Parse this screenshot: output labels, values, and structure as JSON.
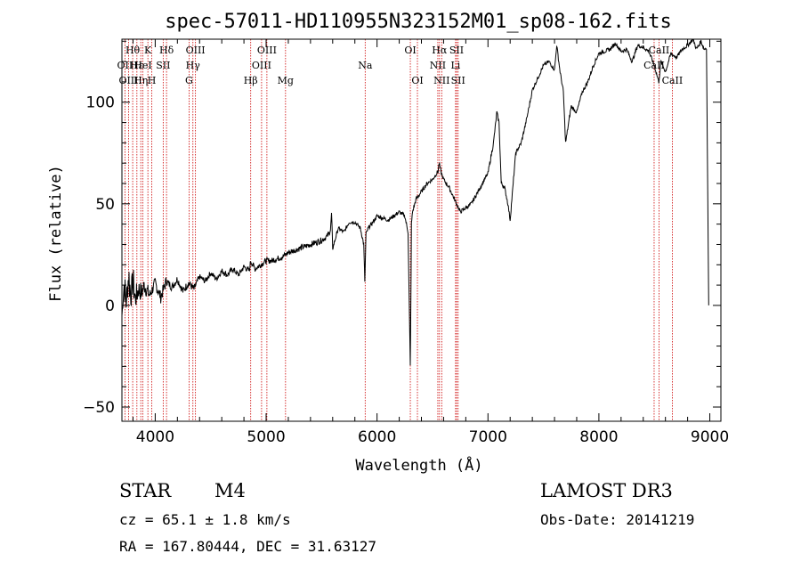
{
  "chart_data": {
    "type": "line",
    "title": "spec-57011-HD110955N323152M01_sp08-162.fits",
    "xlabel": "Wavelength (Å)",
    "ylabel": "Flux (relative)",
    "xlim": [
      3700,
      9100
    ],
    "ylim": [
      -57,
      131
    ],
    "x_ticks": [
      4000,
      5000,
      6000,
      7000,
      8000,
      9000
    ],
    "y_ticks": [
      -50,
      0,
      50,
      100
    ],
    "series": [
      {
        "name": "flux",
        "x": [
          3700,
          3720,
          3740,
          3760,
          3780,
          3800,
          3820,
          3850,
          3880,
          3900,
          3950,
          4000,
          4050,
          4100,
          4150,
          4200,
          4250,
          4300,
          4350,
          4400,
          4450,
          4500,
          4550,
          4600,
          4650,
          4700,
          4750,
          4800,
          4850,
          4860,
          4900,
          4950,
          5000,
          5050,
          5100,
          5150,
          5200,
          5250,
          5300,
          5350,
          5400,
          5450,
          5500,
          5550,
          5580,
          5590,
          5600,
          5650,
          5700,
          5750,
          5800,
          5850,
          5880,
          5890,
          5900,
          5920,
          5950,
          6000,
          6050,
          6100,
          6150,
          6200,
          6250,
          6280,
          6300,
          6310,
          6320,
          6350,
          6400,
          6450,
          6500,
          6550,
          6560,
          6580,
          6600,
          6650,
          6700,
          6750,
          6800,
          6850,
          6900,
          6950,
          7000,
          7050,
          7080,
          7100,
          7120,
          7150,
          7180,
          7200,
          7250,
          7300,
          7350,
          7400,
          7450,
          7500,
          7550,
          7600,
          7620,
          7650,
          7680,
          7700,
          7750,
          7800,
          7850,
          7900,
          7950,
          8000,
          8050,
          8100,
          8150,
          8200,
          8250,
          8300,
          8350,
          8400,
          8450,
          8500,
          8540,
          8560,
          8600,
          8650,
          8700,
          8750,
          8800,
          8850,
          8880,
          8900,
          8920,
          8950,
          8970,
          8990
        ],
        "y": [
          -5,
          10,
          2,
          15,
          5,
          12,
          3,
          8,
          6,
          10,
          5,
          11,
          4,
          12,
          9,
          13,
          7,
          11,
          8,
          14,
          12,
          16,
          13,
          17,
          15,
          18,
          15,
          19,
          17,
          22,
          18,
          20,
          22,
          22,
          23,
          24,
          26,
          27,
          28,
          29,
          30,
          31,
          32,
          34,
          37,
          45,
          28,
          38,
          36,
          41,
          41,
          38,
          30,
          12,
          35,
          38,
          40,
          44,
          43,
          42,
          44,
          46,
          44,
          36,
          -30,
          40,
          46,
          52,
          56,
          60,
          62,
          66,
          70,
          65,
          62,
          58,
          52,
          46,
          48,
          50,
          55,
          60,
          65,
          80,
          95,
          90,
          60,
          58,
          50,
          42,
          75,
          80,
          92,
          106,
          112,
          118,
          120,
          116,
          128,
          115,
          105,
          80,
          98,
          95,
          105,
          110,
          118,
          124,
          125,
          126,
          129,
          125,
          126,
          120,
          128,
          127,
          125,
          118,
          110,
          120,
          115,
          124,
          122,
          126,
          128,
          131,
          126,
          128,
          130,
          126,
          127,
          0
        ],
        "noise": [
          3,
          8,
          7,
          10,
          7,
          8,
          6,
          5,
          4,
          4,
          3,
          3,
          3,
          2,
          2,
          2,
          2,
          2,
          2,
          1.5,
          1.5,
          1.5,
          1.5,
          1.5,
          1.5,
          1.5,
          1.5,
          1.5,
          1.5,
          1.5,
          1.5,
          1.5,
          1.5,
          1.5,
          1.5,
          1.5,
          1.5,
          1.5,
          1.5,
          1.5,
          1.5,
          1.5,
          1.5,
          1.5,
          1,
          1,
          1,
          1,
          1,
          1,
          1,
          1,
          1,
          1,
          1,
          1,
          1,
          1,
          1,
          1,
          1,
          1,
          1,
          1,
          1,
          1,
          1,
          1,
          1,
          1,
          1,
          1,
          1,
          1,
          1,
          1,
          1,
          1,
          1,
          1,
          1,
          1,
          1,
          1,
          1,
          1,
          1,
          1,
          1,
          1,
          1,
          1,
          1,
          1,
          1,
          1,
          1,
          1,
          1,
          1,
          1,
          1,
          1,
          1,
          1,
          1,
          1,
          1,
          1,
          1,
          1,
          1,
          1,
          1,
          1,
          1,
          1,
          1,
          1,
          1,
          1,
          1,
          1,
          1,
          1,
          1,
          1,
          1,
          1,
          1,
          1,
          1
        ]
      }
    ],
    "lines": [
      {
        "name": "Hθ",
        "x": 3797,
        "row": 0
      },
      {
        "name": "OII",
        "x": 3727,
        "row": 1
      },
      {
        "name": "OIII",
        "x": 3760,
        "row": 2
      },
      {
        "name": "Hε",
        "x": 3835,
        "row": 1
      },
      {
        "name": "K",
        "x": 3934,
        "row": 0
      },
      {
        "name": "HeI",
        "x": 3889,
        "row": 1
      },
      {
        "name": "Hη",
        "x": 3870,
        "row": 2
      },
      {
        "name": "H",
        "x": 3969,
        "row": 2
      },
      {
        "name": "SII",
        "x": 4072,
        "row": 1
      },
      {
        "name": "Hδ",
        "x": 4102,
        "row": 0
      },
      {
        "name": "OIII",
        "x": 4363,
        "row": 0
      },
      {
        "name": "Hγ",
        "x": 4340,
        "row": 1
      },
      {
        "name": "G",
        "x": 4305,
        "row": 2
      },
      {
        "name": "Hβ",
        "x": 4861,
        "row": 2
      },
      {
        "name": "OIII",
        "x": 5007,
        "row": 0
      },
      {
        "name": "OIII",
        "x": 4959,
        "row": 1
      },
      {
        "name": "Mg",
        "x": 5175,
        "row": 2
      },
      {
        "name": "Na",
        "x": 5893,
        "row": 1
      },
      {
        "name": "OI",
        "x": 6300,
        "row": 0
      },
      {
        "name": "OI",
        "x": 6364,
        "row": 2
      },
      {
        "name": "Hα",
        "x": 6563,
        "row": 0
      },
      {
        "name": "NII",
        "x": 6548,
        "row": 1
      },
      {
        "name": "NII",
        "x": 6583,
        "row": 2
      },
      {
        "name": "SII",
        "x": 6717,
        "row": 0
      },
      {
        "name": "Li",
        "x": 6708,
        "row": 1
      },
      {
        "name": "SII",
        "x": 6731,
        "row": 2
      },
      {
        "name": "CaII",
        "x": 8542,
        "row": 0
      },
      {
        "name": "CaII",
        "x": 8498,
        "row": 1
      },
      {
        "name": "CaII",
        "x": 8662,
        "row": 2
      }
    ]
  },
  "info": {
    "object_class": "STAR",
    "subclass": "M4",
    "survey": "LAMOST DR3",
    "cz": "cz = 65.1 ± 1.8 km/s",
    "obs_date": "Obs-Date: 20141219",
    "coords": "RA = 167.80444, DEC =  31.63127"
  },
  "colors": {
    "line_marker": "#cc0000",
    "spectrum": "#000000"
  }
}
